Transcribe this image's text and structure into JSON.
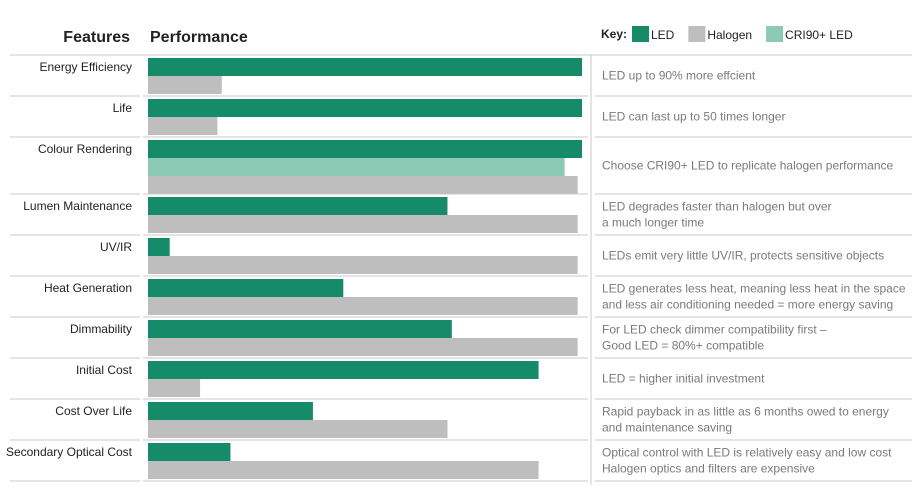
{
  "chart_data": {
    "type": "bar",
    "orientation": "horizontal",
    "column_headers": [
      "Features",
      "Performance"
    ],
    "legend_title": "Key:",
    "categories": [
      "Energy Efficiency",
      "Life",
      "Colour Rendering",
      "Lumen Maintenance",
      "UV/IR",
      "Heat Generation",
      "Dimmability",
      "Initial Cost",
      "Cost Over Life",
      "Secondary Optical Cost"
    ],
    "series": [
      {
        "name": "LED",
        "color": "#168b6a",
        "values": [
          100,
          100,
          100,
          69,
          5,
          45,
          70,
          90,
          38,
          19
        ]
      },
      {
        "name": "CRI90+ LED",
        "color": "#8ccab6",
        "values": [
          null,
          null,
          96,
          null,
          null,
          null,
          null,
          null,
          null,
          null
        ]
      },
      {
        "name": "Halogen",
        "color": "#bebebe",
        "values": [
          17,
          16,
          99,
          99,
          99,
          99,
          99,
          12,
          69,
          90
        ]
      }
    ],
    "legend_order": [
      0,
      2,
      1
    ],
    "xlim": [
      0,
      100
    ],
    "notes": [
      [
        "LED up to 90% more effcient"
      ],
      [
        "LED can last up to 50 times longer"
      ],
      [
        "Choose CRI90+ LED to replicate halogen performance"
      ],
      [
        "LED degrades faster than halogen but over",
        "a much longer time"
      ],
      [
        "LEDs emit very little UV/IR, protects sensitive objects"
      ],
      [
        "LED generates less heat, meaning less heat in the space",
        "and less air conditioning needed = more energy saving"
      ],
      [
        "For LED check dimmer compatibility first –",
        "Good LED = 80%+ compatible"
      ],
      [
        "LED = higher initial investment"
      ],
      [
        "Rapid payback in as little as 6 months owed to energy",
        "and maintenance saving"
      ],
      [
        "Optical control with LED is relatively easy and low cost",
        "Halogen optics and filters are expensive"
      ]
    ]
  }
}
